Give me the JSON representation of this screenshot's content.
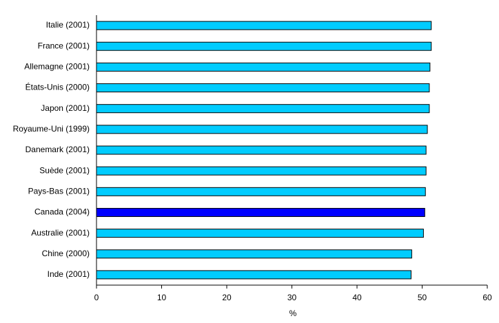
{
  "chart_data": {
    "type": "hbar",
    "categories": [
      "Italie (2001)",
      "France (2001)",
      "Allemagne (2001)",
      "États-Unis (2000)",
      "Japon (2001)",
      "Royaume-Uni (1999)",
      "Danemark (2001)",
      "Suède (2001)",
      "Pays-Bas (2001)",
      "Canada (2004)",
      "Australie (2001)",
      "Chine (2000)",
      "Inde (2001)"
    ],
    "values": [
      51.4,
      51.4,
      51.2,
      51.1,
      51.1,
      50.8,
      50.6,
      50.6,
      50.5,
      50.4,
      50.2,
      48.4,
      48.3
    ],
    "colors": [
      "#00ccff",
      "#00ccff",
      "#00ccff",
      "#00ccff",
      "#00ccff",
      "#00ccff",
      "#00ccff",
      "#00ccff",
      "#00ccff",
      "#0000ff",
      "#00ccff",
      "#00ccff",
      "#00ccff"
    ],
    "xlabel": "%",
    "xlim": [
      0,
      60
    ],
    "xticks": [
      0,
      10,
      20,
      30,
      40,
      50,
      60
    ],
    "grid": false
  }
}
